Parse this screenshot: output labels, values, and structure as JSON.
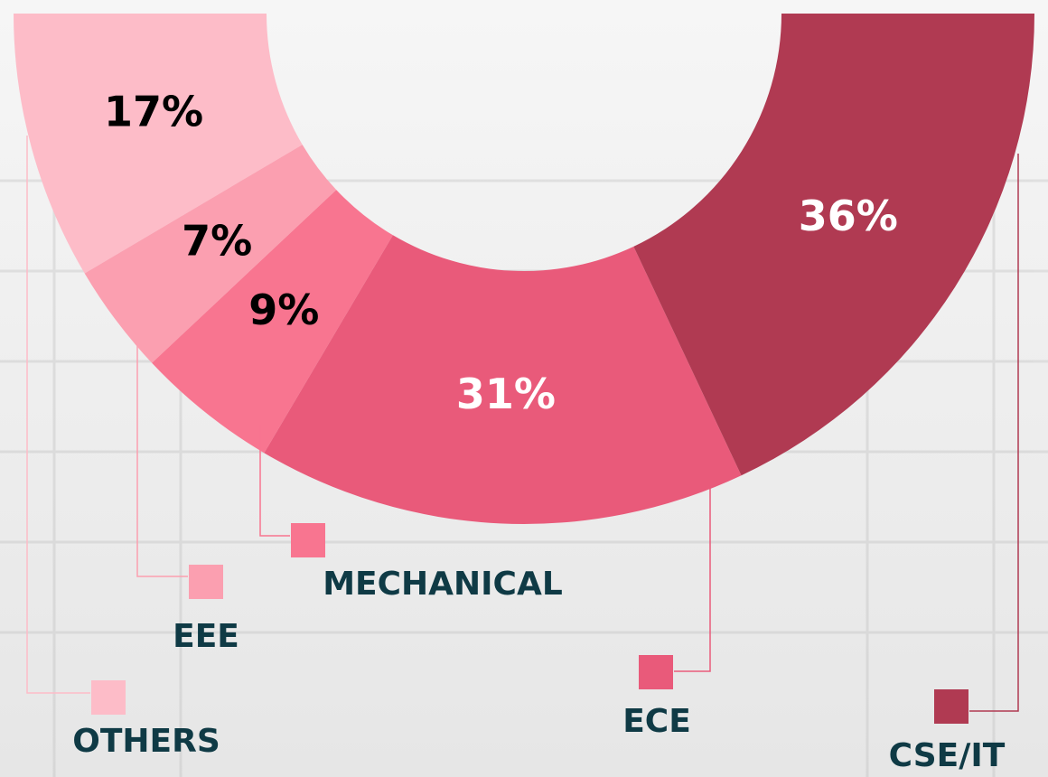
{
  "chart_data": {
    "type": "semi-donut",
    "categories": [
      "OTHERS",
      "EEE",
      "MECHANICAL",
      "ECE",
      "CSE/IT"
    ],
    "values": [
      17,
      7,
      9,
      31,
      36
    ],
    "value_labels": [
      "17%",
      "7%",
      "9%",
      "31%",
      "36%"
    ],
    "colors": [
      "#fdbcc8",
      "#fb9fb0",
      "#f87590",
      "#e95a7a",
      "#b03a52"
    ],
    "label_colors": [
      "#000000",
      "#000000",
      "#000000",
      "#ffffff",
      "#ffffff"
    ]
  }
}
